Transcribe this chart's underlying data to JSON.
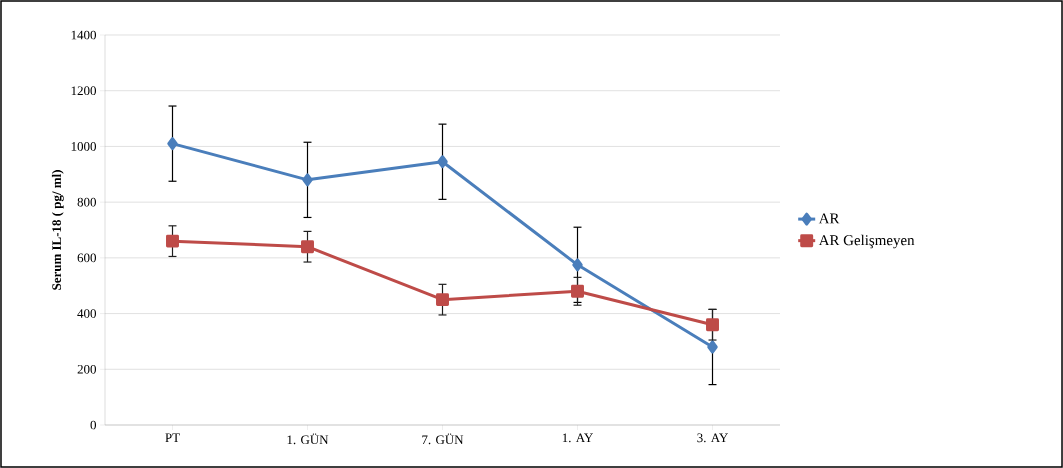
{
  "chart_data": {
    "type": "line",
    "ylabel": "Serum IL-18 ( pg/ ml)",
    "categories": [
      "PT",
      "1. GÜN",
      "7. GÜN",
      "1. AY",
      "3. AY"
    ],
    "series": [
      {
        "name": "AR",
        "color": "#4a7ebb",
        "marker": "diamond",
        "values": [
          1010,
          880,
          945,
          575,
          280
        ],
        "errors": [
          135,
          135,
          135,
          135,
          135
        ]
      },
      {
        "name": "AR Gelişmeyen",
        "color": "#be4b48",
        "marker": "square",
        "values": [
          660,
          640,
          450,
          480,
          360
        ],
        "errors": [
          55,
          55,
          55,
          50,
          55
        ]
      }
    ],
    "ylim": [
      0,
      1400
    ],
    "yticks": [
      0,
      200,
      400,
      600,
      800,
      1000,
      1200,
      1400
    ],
    "grid": "y",
    "legend": "right",
    "line_style": "solid"
  }
}
